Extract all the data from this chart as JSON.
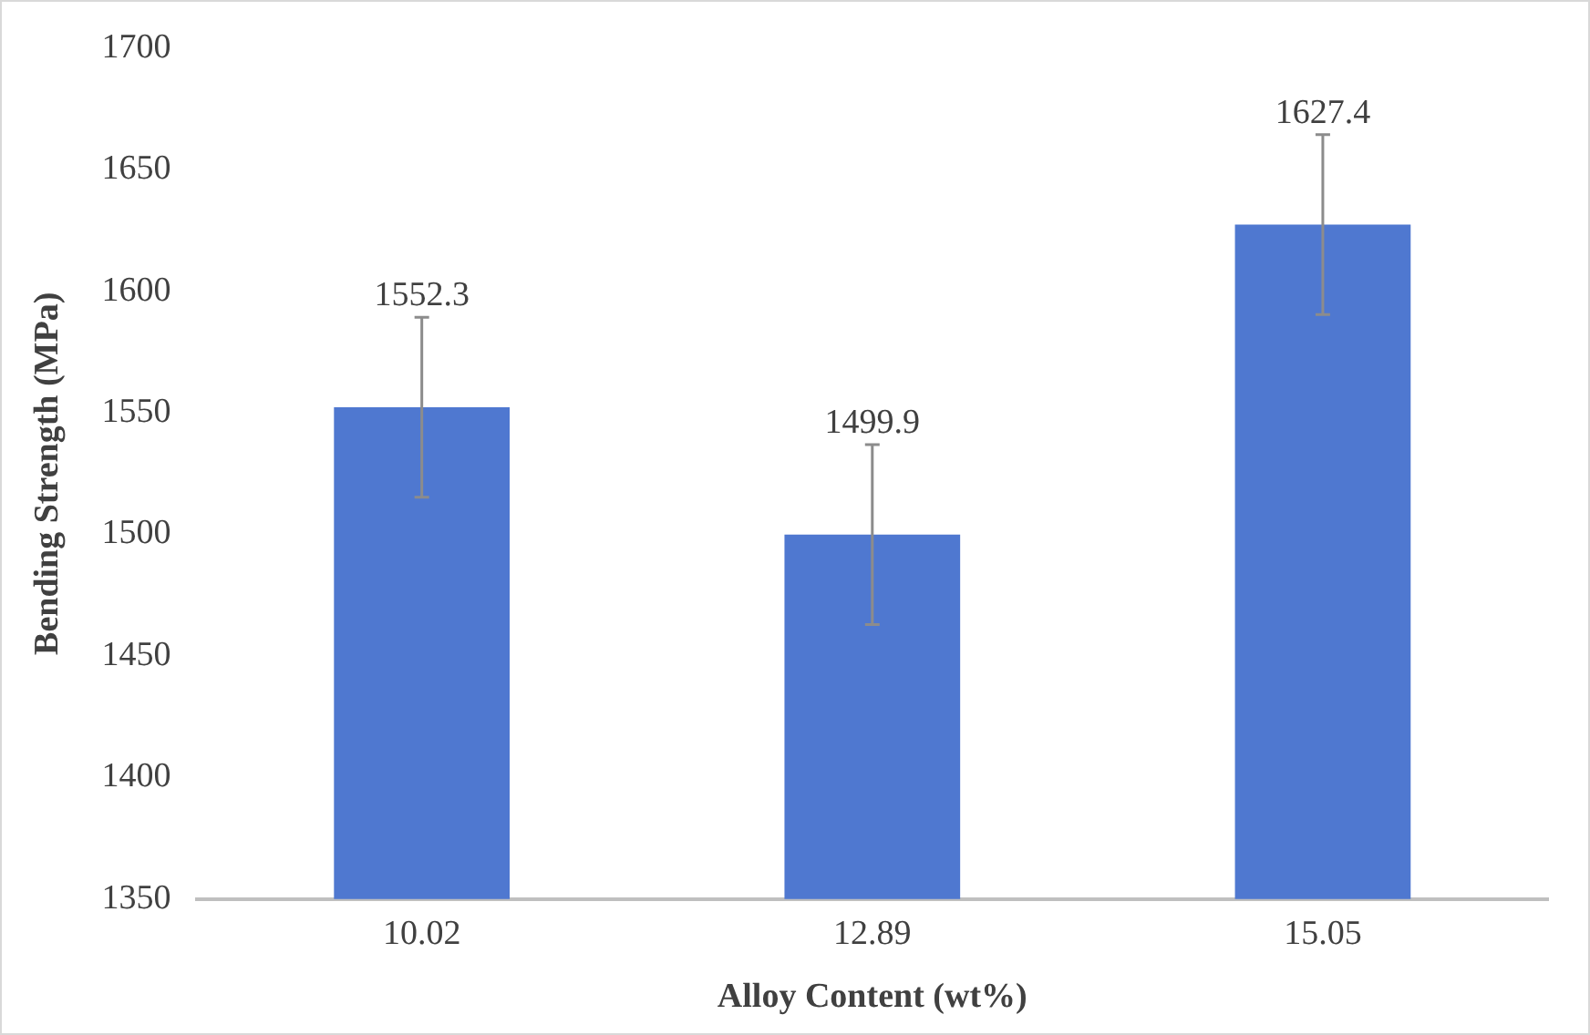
{
  "chart_data": {
    "type": "bar",
    "xlabel": "Alloy Content (wt%)",
    "ylabel": "Bending Strength (MPa)",
    "categories": [
      "10.02",
      "12.89",
      "15.05"
    ],
    "values": [
      1552.3,
      1499.9,
      1627.4
    ],
    "errors": [
      37,
      37,
      37
    ],
    "color": "#4f78d0",
    "ylim": [
      1350,
      1700
    ],
    "yticks": [
      1350,
      1400,
      1450,
      1500,
      1550,
      1600,
      1650,
      1700
    ],
    "grid": false,
    "data_labels": true
  }
}
